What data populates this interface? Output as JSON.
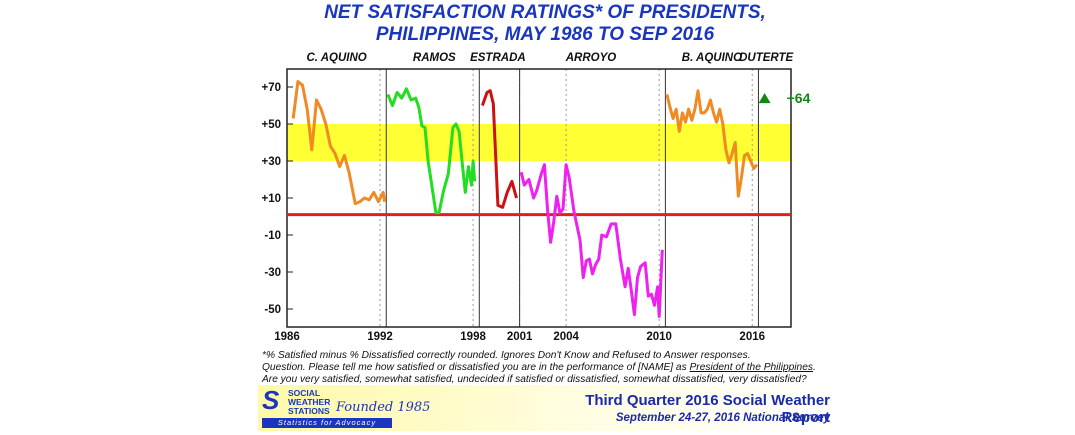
{
  "chart_data": {
    "type": "line",
    "title_line1": "NET SATISFACTION RATINGS* OF PRESIDENTS,",
    "title_line2": "PHILIPPINES, MAY 1986 TO SEP 2016",
    "ylim": [
      -60,
      80
    ],
    "xlim": [
      1986,
      2018.5
    ],
    "yticks": [
      "+70",
      "+50",
      "+30",
      "+10",
      "-10",
      "-30",
      "-50"
    ],
    "ytick_values": [
      70,
      50,
      30,
      10,
      -10,
      -30,
      -50
    ],
    "xticks": [
      "1986",
      "1992",
      "1998",
      "2001",
      "2004",
      "2010",
      "2016"
    ],
    "xtick_values": [
      1986,
      1992,
      1998,
      2001,
      2004,
      2010,
      2016
    ],
    "band": {
      "from": 30,
      "to": 50,
      "color": "#ffff33"
    },
    "zero_line": {
      "y": 1,
      "color": "#e0201c"
    },
    "term_dividers": [
      1992.4,
      1998.4,
      2001.0,
      2010.4,
      2016.4
    ],
    "presidents": [
      {
        "label": "C. AQUINO",
        "center": 1989.2
      },
      {
        "label": "RAMOS",
        "center": 1995.5
      },
      {
        "label": "ESTRADA",
        "center": 1999.6
      },
      {
        "label": "ARROYO",
        "center": 2005.6
      },
      {
        "label": "B. AQUINO",
        "center": 2013.4
      },
      {
        "label": "DUTERTE",
        "center": 2016.9
      }
    ],
    "series": [
      {
        "color": "#f08a24",
        "points": [
          [
            1986.4,
            53
          ],
          [
            1986.7,
            73
          ],
          [
            1987.0,
            71
          ],
          [
            1987.3,
            58
          ],
          [
            1987.6,
            36
          ],
          [
            1987.9,
            63
          ],
          [
            1988.2,
            58
          ],
          [
            1988.5,
            50
          ],
          [
            1988.8,
            38
          ],
          [
            1989.1,
            34
          ],
          [
            1989.4,
            27
          ],
          [
            1989.7,
            33
          ],
          [
            1990.0,
            24
          ],
          [
            1990.4,
            7
          ],
          [
            1990.7,
            8
          ],
          [
            1991.0,
            10
          ],
          [
            1991.3,
            9
          ],
          [
            1991.6,
            13
          ],
          [
            1991.9,
            8
          ],
          [
            1992.2,
            13
          ],
          [
            1992.3,
            8
          ]
        ]
      },
      {
        "color": "#22dd22",
        "points": [
          [
            1992.5,
            66
          ],
          [
            1992.8,
            60
          ],
          [
            1993.1,
            67
          ],
          [
            1993.4,
            64
          ],
          [
            1993.7,
            69
          ],
          [
            1994.0,
            63
          ],
          [
            1994.3,
            64
          ],
          [
            1994.5,
            59
          ],
          [
            1994.7,
            49
          ],
          [
            1994.9,
            48
          ],
          [
            1995.1,
            30
          ],
          [
            1995.3,
            19
          ],
          [
            1995.6,
            2
          ],
          [
            1995.8,
            2
          ],
          [
            1996.1,
            14
          ],
          [
            1996.4,
            23
          ],
          [
            1996.7,
            48
          ],
          [
            1996.9,
            50
          ],
          [
            1997.1,
            46
          ],
          [
            1997.3,
            29
          ],
          [
            1997.5,
            13
          ],
          [
            1997.7,
            27
          ],
          [
            1997.9,
            17
          ],
          [
            1998.0,
            30
          ],
          [
            1998.1,
            19
          ]
        ]
      },
      {
        "color": "#cc1111",
        "points": [
          [
            1998.6,
            60
          ],
          [
            1998.9,
            67
          ],
          [
            1999.1,
            68
          ],
          [
            1999.3,
            61
          ],
          [
            1999.6,
            6
          ],
          [
            1999.9,
            5
          ],
          [
            2000.2,
            13
          ],
          [
            2000.5,
            19
          ],
          [
            2000.8,
            10
          ]
        ]
      },
      {
        "color": "#ee22ee",
        "points": [
          [
            2001.1,
            24
          ],
          [
            2001.3,
            17
          ],
          [
            2001.6,
            20
          ],
          [
            2001.9,
            10
          ],
          [
            2002.1,
            14
          ],
          [
            2002.4,
            23
          ],
          [
            2002.6,
            28
          ],
          [
            2002.8,
            4
          ],
          [
            2003.0,
            -14
          ],
          [
            2003.2,
            -3
          ],
          [
            2003.4,
            11
          ],
          [
            2003.6,
            2
          ],
          [
            2003.8,
            4
          ],
          [
            2004.0,
            28
          ],
          [
            2004.2,
            21
          ],
          [
            2004.5,
            3
          ],
          [
            2004.7,
            -5
          ],
          [
            2004.9,
            -13
          ],
          [
            2005.1,
            -33
          ],
          [
            2005.3,
            -24
          ],
          [
            2005.5,
            -23
          ],
          [
            2005.7,
            -31
          ],
          [
            2005.9,
            -26
          ],
          [
            2006.1,
            -23
          ],
          [
            2006.3,
            -10
          ],
          [
            2006.6,
            -11
          ],
          [
            2006.9,
            -4
          ],
          [
            2007.2,
            -4
          ],
          [
            2007.5,
            -23
          ],
          [
            2007.8,
            -38
          ],
          [
            2008.0,
            -28
          ],
          [
            2008.2,
            -40
          ],
          [
            2008.4,
            -53
          ],
          [
            2008.6,
            -33
          ],
          [
            2008.8,
            -27
          ],
          [
            2009.1,
            -25
          ],
          [
            2009.3,
            -43
          ],
          [
            2009.5,
            -42
          ],
          [
            2009.7,
            -48
          ],
          [
            2009.9,
            -38
          ],
          [
            2010.0,
            -54
          ],
          [
            2010.2,
            -18
          ]
        ]
      },
      {
        "color": "#f08a24",
        "points": [
          [
            2010.5,
            66
          ],
          [
            2010.7,
            59
          ],
          [
            2010.9,
            53
          ],
          [
            2011.1,
            58
          ],
          [
            2011.3,
            46
          ],
          [
            2011.5,
            56
          ],
          [
            2011.7,
            51
          ],
          [
            2011.9,
            58
          ],
          [
            2012.1,
            52
          ],
          [
            2012.3,
            58
          ],
          [
            2012.5,
            68
          ],
          [
            2012.7,
            56
          ],
          [
            2012.9,
            56
          ],
          [
            2013.1,
            58
          ],
          [
            2013.3,
            63
          ],
          [
            2013.5,
            56
          ],
          [
            2013.7,
            51
          ],
          [
            2013.9,
            58
          ],
          [
            2014.1,
            50
          ],
          [
            2014.3,
            36
          ],
          [
            2014.5,
            29
          ],
          [
            2014.7,
            34
          ],
          [
            2014.9,
            40
          ],
          [
            2015.1,
            11
          ],
          [
            2015.3,
            21
          ],
          [
            2015.5,
            33
          ],
          [
            2015.7,
            34
          ],
          [
            2015.9,
            30
          ],
          [
            2016.1,
            26
          ],
          [
            2016.3,
            28
          ]
        ]
      }
    ],
    "markers": [
      {
        "x": 2016.8,
        "y": 64,
        "shape": "triangle",
        "color": "#118811",
        "label": "+64"
      }
    ],
    "footnote_line1": "*% Satisfied minus % Dissatisfied correctly rounded. Ignores Don't Know and Refused to Answer responses.",
    "footnote_line2_pre": "Question. Please tell me how satisfied or dissatisfied you are in the performance of [NAME] as ",
    "footnote_line2_ul": "President of the Philippines",
    "footnote_line2_post": ".",
    "footnote_line3": "Are you very satisfied, somewhat satisfied, undecided if satisfied or dissatisfied, somewhat dissatisfied, very dissatisfied?"
  },
  "logo": {
    "line1": "SOCIAL",
    "line2": "WEATHER",
    "line3": "STATIONS",
    "founded": "Founded 1985",
    "tagline": "Statistics for Advocacy"
  },
  "report": {
    "title": "Third Quarter 2016 Social Weather Report",
    "survey": "September 24-27, 2016 National Survey"
  }
}
